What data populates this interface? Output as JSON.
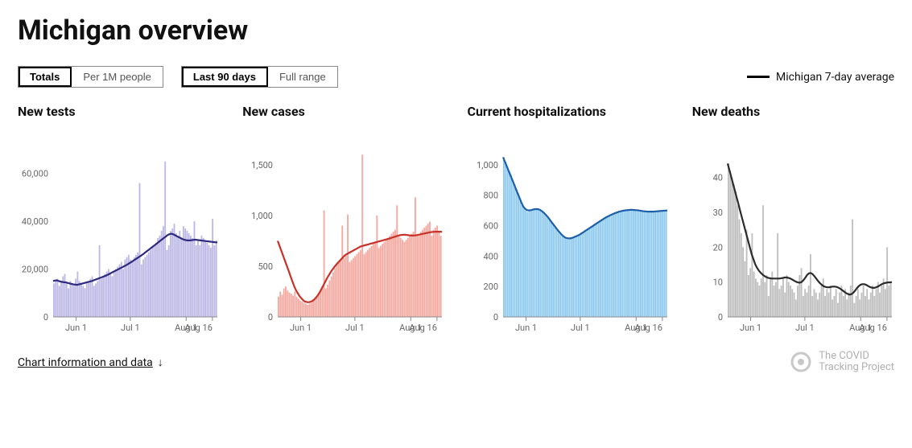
{
  "title": "Michigan overview",
  "toggles": {
    "metric": {
      "options": [
        "Totals",
        "Per 1M people"
      ],
      "active": "Totals"
    },
    "range": {
      "options": [
        "Last 90 days",
        "Full range"
      ],
      "active": "Last 90 days"
    }
  },
  "legend": {
    "label": "Michigan 7-day average",
    "line_color": "#000000"
  },
  "x_axis": {
    "ticks": [
      "Jun 1",
      "Jul 1",
      "Aug 1",
      "Aug 16"
    ],
    "positions": [
      0.14,
      0.47,
      0.81,
      0.97
    ]
  },
  "colors": {
    "background": "#ffffff",
    "grid": "#e6e6e6",
    "axis_text": "#666666"
  },
  "charts": [
    {
      "key": "tests",
      "title": "New tests",
      "type": "bar+line",
      "bar_color": "#bdb9e6",
      "line_color": "#2e2a80",
      "ymax": 70000,
      "yticks": [
        0,
        20000,
        40000,
        60000
      ],
      "ytick_labels": [
        "0",
        "20,000",
        "40,000",
        "60,000"
      ],
      "bars": [
        14000,
        15000,
        16000,
        13000,
        15000,
        17000,
        18000,
        14000,
        12000,
        15000,
        14000,
        13000,
        16000,
        19000,
        15000,
        14000,
        13000,
        12000,
        14000,
        15000,
        16000,
        17000,
        13000,
        14000,
        15000,
        30000,
        16000,
        17000,
        18000,
        19000,
        20000,
        18000,
        17000,
        19000,
        20000,
        21000,
        22000,
        23000,
        20000,
        24000,
        25000,
        26000,
        24000,
        23000,
        25000,
        26000,
        27000,
        56000,
        22000,
        24000,
        25000,
        26000,
        27000,
        28000,
        29000,
        30000,
        31000,
        33000,
        34000,
        36000,
        38000,
        65000,
        28000,
        30000,
        36000,
        37000,
        39000,
        35000,
        34000,
        36000,
        33000,
        38000,
        37000,
        36000,
        35000,
        34000,
        33000,
        40000,
        30000,
        32000,
        30000,
        34000,
        33000,
        32000,
        31000,
        30000,
        29000,
        41000,
        30000,
        32000
      ],
      "line": [
        15000,
        15200,
        15300,
        15000,
        14800,
        14600,
        14500,
        14400,
        14200,
        14000,
        13800,
        13600,
        13500,
        13400,
        13600,
        13800,
        14000,
        14200,
        14400,
        14600,
        14800,
        15000,
        15300,
        15600,
        15900,
        16200,
        16500,
        16800,
        17100,
        17400,
        17800,
        18200,
        18600,
        19000,
        19400,
        19800,
        20200,
        20600,
        21000,
        21400,
        21800,
        22300,
        22800,
        23300,
        23800,
        24300,
        24800,
        25300,
        25800,
        26400,
        27000,
        27600,
        28200,
        28800,
        29400,
        30000,
        30600,
        31200,
        31800,
        32400,
        33000,
        33600,
        34200,
        34600,
        34800,
        34600,
        34200,
        33800,
        33400,
        33000,
        32600,
        32300,
        32100,
        32000,
        32000,
        32100,
        32200,
        32300,
        32200,
        32100,
        32000,
        31900,
        31800,
        31700,
        31600,
        31500,
        31400,
        31300,
        31200,
        31200
      ]
    },
    {
      "key": "cases",
      "title": "New cases",
      "type": "bar+line",
      "bar_color": "#f5a9a0",
      "line_color": "#c73228",
      "ymax": 1650,
      "yticks": [
        0,
        500,
        1000,
        1500
      ],
      "ytick_labels": [
        "0",
        "500",
        "1,000",
        "1,500"
      ],
      "bars": [
        200,
        250,
        220,
        280,
        300,
        260,
        240,
        230,
        210,
        250,
        200,
        180,
        160,
        150,
        140,
        130,
        120,
        130,
        140,
        160,
        180,
        200,
        230,
        260,
        300,
        1050,
        280,
        320,
        360,
        400,
        440,
        480,
        520,
        550,
        570,
        900,
        580,
        600,
        1010,
        540,
        560,
        580,
        600,
        620,
        640,
        660,
        1600,
        620,
        640,
        660,
        680,
        700,
        720,
        740,
        1000,
        680,
        700,
        720,
        740,
        760,
        780,
        800,
        820,
        840,
        860,
        1100,
        800,
        780,
        760,
        740,
        760,
        780,
        800,
        820,
        840,
        1180,
        800,
        820,
        840,
        860,
        880,
        900,
        920,
        940,
        800,
        860,
        880,
        900,
        850,
        800
      ],
      "line": [
        750,
        700,
        650,
        600,
        550,
        500,
        450,
        400,
        350,
        300,
        260,
        230,
        200,
        180,
        160,
        150,
        145,
        145,
        150,
        160,
        175,
        195,
        220,
        250,
        285,
        320,
        355,
        390,
        420,
        450,
        475,
        500,
        520,
        540,
        560,
        580,
        600,
        615,
        625,
        635,
        645,
        655,
        665,
        675,
        685,
        695,
        700,
        705,
        710,
        715,
        720,
        725,
        730,
        735,
        740,
        745,
        750,
        755,
        760,
        765,
        770,
        776,
        782,
        788,
        794,
        800,
        805,
        808,
        810,
        810,
        808,
        805,
        803,
        802,
        803,
        805,
        808,
        812,
        816,
        820,
        824,
        828,
        832,
        836,
        838,
        839,
        840,
        840,
        840,
        840
      ]
    },
    {
      "key": "hosp",
      "title": "Current hospitalizations",
      "type": "bar+line",
      "bar_color": "#8ecaf0",
      "line_color": "#1d5fa8",
      "ymax": 1100,
      "yticks": [
        0,
        200,
        400,
        600,
        800,
        1000
      ],
      "ytick_labels": [
        "0",
        "200",
        "400",
        "600",
        "800",
        "1,000"
      ],
      "bars": [
        1050,
        1020,
        990,
        960,
        930,
        900,
        870,
        840,
        810,
        780,
        750,
        720,
        700,
        690,
        695,
        700,
        705,
        710,
        710,
        705,
        700,
        690,
        680,
        665,
        650,
        635,
        620,
        605,
        590,
        575,
        560,
        545,
        530,
        520,
        515,
        515,
        515,
        520,
        525,
        530,
        535,
        540,
        548,
        556,
        564,
        572,
        580,
        588,
        596,
        604,
        612,
        620,
        628,
        636,
        644,
        652,
        660,
        666,
        672,
        678,
        683,
        688,
        692,
        696,
        699,
        702,
        704,
        706,
        707,
        708,
        708,
        707,
        706,
        705,
        703,
        701,
        699,
        697,
        695,
        693,
        692,
        692,
        693,
        694,
        695,
        696,
        697,
        698,
        699,
        700
      ],
      "line": [
        1050,
        1020,
        990,
        960,
        930,
        900,
        870,
        840,
        810,
        780,
        750,
        725,
        710,
        702,
        700,
        702,
        705,
        708,
        709,
        708,
        704,
        696,
        686,
        674,
        660,
        644,
        628,
        612,
        596,
        580,
        565,
        551,
        538,
        527,
        520,
        517,
        516,
        518,
        522,
        527,
        532,
        538,
        545,
        553,
        561,
        569,
        577,
        585,
        593,
        601,
        609,
        617,
        625,
        633,
        641,
        649,
        656,
        662,
        668,
        674,
        679,
        684,
        688,
        692,
        695,
        698,
        700,
        702,
        703,
        704,
        704,
        703,
        702,
        701,
        699,
        697,
        695,
        694,
        693,
        692,
        692,
        692,
        693,
        694,
        695,
        696,
        697,
        698,
        699,
        700
      ]
    },
    {
      "key": "deaths",
      "title": "New deaths",
      "type": "bar+line",
      "bar_color": "#bfbfbf",
      "line_color": "#2b2b2b",
      "ymax": 48,
      "yticks": [
        0,
        10,
        20,
        30,
        40
      ],
      "ytick_labels": [
        "0",
        "10",
        "20",
        "30",
        "40"
      ],
      "bars": [
        44,
        42,
        40,
        38,
        36,
        32,
        28,
        24,
        20,
        16,
        25,
        12,
        14,
        24,
        13,
        11,
        10,
        9,
        11,
        32,
        10,
        12,
        6,
        11,
        13,
        9,
        10,
        24,
        8,
        9,
        11,
        7,
        12,
        10,
        9,
        8,
        7,
        5,
        9,
        12,
        14,
        6,
        8,
        7,
        9,
        18,
        6,
        8,
        7,
        5,
        7,
        9,
        11,
        6,
        8,
        7,
        9,
        5,
        6,
        8,
        4,
        7,
        9,
        6,
        8,
        5,
        7,
        9,
        28,
        4,
        6,
        8,
        5,
        7,
        9,
        6,
        8,
        5,
        7,
        9,
        6,
        8,
        10,
        7,
        9,
        11,
        8,
        20,
        9,
        10
      ],
      "line": [
        44,
        42,
        40,
        38,
        36,
        34,
        32,
        30,
        28,
        26,
        24,
        22,
        20,
        18,
        16.5,
        15,
        14,
        13.2,
        12.6,
        12.1,
        11.7,
        11.4,
        11.2,
        11.1,
        11,
        11,
        11,
        11,
        11,
        11.1,
        11.2,
        11.3,
        11.3,
        11.2,
        11,
        10.7,
        10.4,
        10.1,
        9.9,
        9.8,
        10,
        10.5,
        11.2,
        12,
        12.5,
        12.6,
        12.3,
        11.7,
        11,
        10.3,
        9.7,
        9.2,
        8.8,
        8.6,
        8.5,
        8.5,
        8.6,
        8.7,
        8.7,
        8.6,
        8.4,
        8.1,
        7.7,
        7.3,
        6.9,
        6.6,
        6.4,
        6.5,
        6.9,
        7.5,
        8.2,
        8.8,
        9.2,
        9.4,
        9.4,
        9.2,
        8.9,
        8.6,
        8.4,
        8.3,
        8.4,
        8.6,
        8.9,
        9.2,
        9.5,
        9.7,
        9.8,
        9.9,
        9.9,
        10
      ]
    }
  ],
  "footer": {
    "info_link": "Chart information and data",
    "brand_lines": [
      "The COVID",
      "Tracking Project"
    ]
  }
}
